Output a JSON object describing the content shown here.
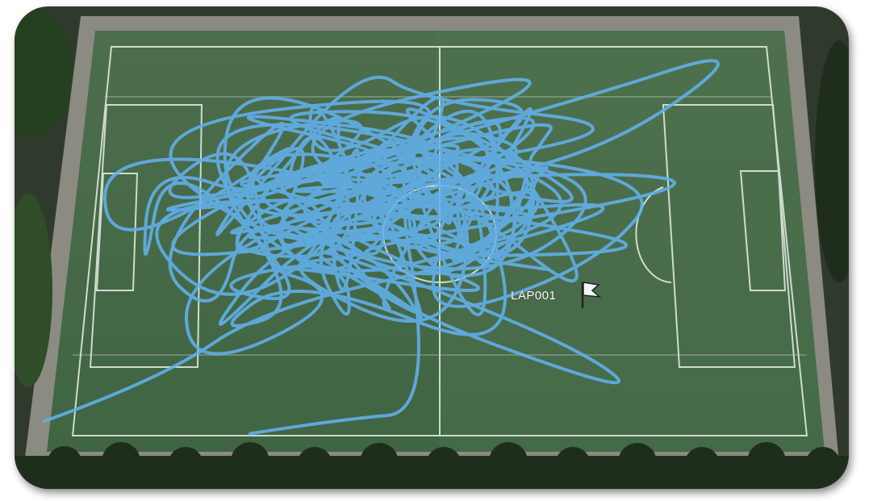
{
  "marker": {
    "label": "LAP001"
  }
}
